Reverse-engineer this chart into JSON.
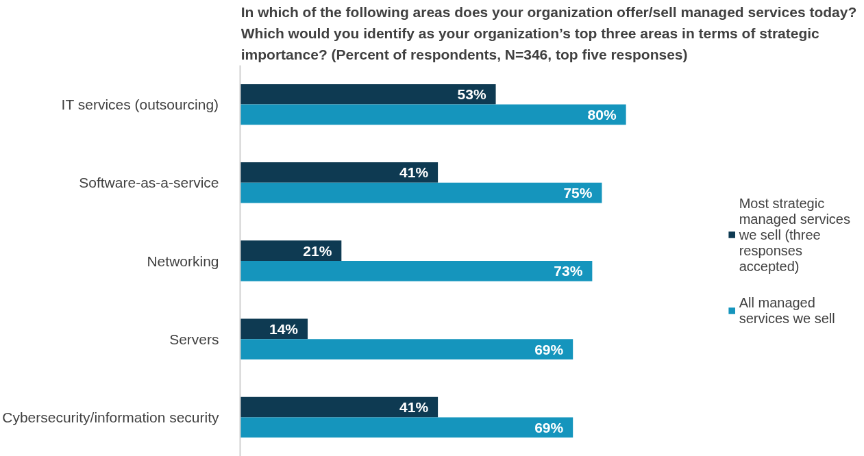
{
  "chart_data": {
    "type": "bar",
    "orientation": "horizontal",
    "title": "In which of the following areas does your organization offer/sell managed services today? Which would you identify as your organization’s top three areas in terms of strategic importance? (Percent of respondents, N=346, top five responses)",
    "categories": [
      "IT services (outsourcing)",
      "Software-as-a-service",
      "Networking",
      "Servers",
      "Cybersecurity/information security"
    ],
    "series": [
      {
        "name": "Most strategic managed services we sell (three responses accepted)",
        "color": "#0e3a52",
        "values": [
          53,
          41,
          21,
          14,
          41
        ],
        "value_labels": [
          "53%",
          "41%",
          "21%",
          "14%",
          "41%"
        ]
      },
      {
        "name": "All managed services we sell",
        "color": "#1595bd",
        "values": [
          80,
          75,
          73,
          69,
          69
        ],
        "value_labels": [
          "80%",
          "75%",
          "73%",
          "69%",
          "69%"
        ]
      }
    ],
    "grid": false,
    "legend": "right"
  }
}
